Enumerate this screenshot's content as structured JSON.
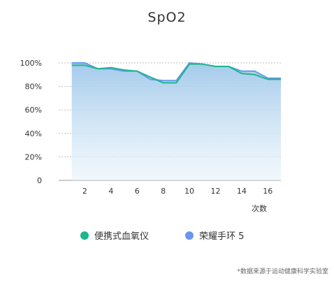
{
  "chart_data": {
    "type": "line",
    "title": "SpO2",
    "xlabel": "次数",
    "ylabel": "",
    "xlim": [
      0,
      17
    ],
    "ylim": [
      0,
      100
    ],
    "x_ticks": [
      2,
      4,
      6,
      8,
      10,
      12,
      14,
      16
    ],
    "y_ticks": [
      0,
      20,
      40,
      60,
      80,
      100
    ],
    "y_tick_labels": [
      "0",
      "20%",
      "40%",
      "60%",
      "80%",
      "100%"
    ],
    "grid": true,
    "legend_position": "bottom",
    "x": [
      1,
      2,
      3,
      4,
      5,
      6,
      7,
      8,
      9,
      10,
      11,
      12,
      13,
      14,
      15,
      16,
      17
    ],
    "series": [
      {
        "name": "便携式血氧仪",
        "color": "#1fb58f",
        "values": [
          98,
          98,
          95,
          96,
          94,
          93,
          88,
          83,
          83,
          99,
          99,
          97,
          97,
          91,
          90,
          86,
          86
        ]
      },
      {
        "name": "荣耀手环 5",
        "color": "#6a97ee",
        "values": [
          100,
          100,
          95,
          95,
          93,
          93,
          86,
          85,
          85,
          100,
          99,
          97,
          97,
          93,
          93,
          87,
          87
        ]
      }
    ]
  },
  "footnote": "*数据来源于运动健康科学实验室"
}
